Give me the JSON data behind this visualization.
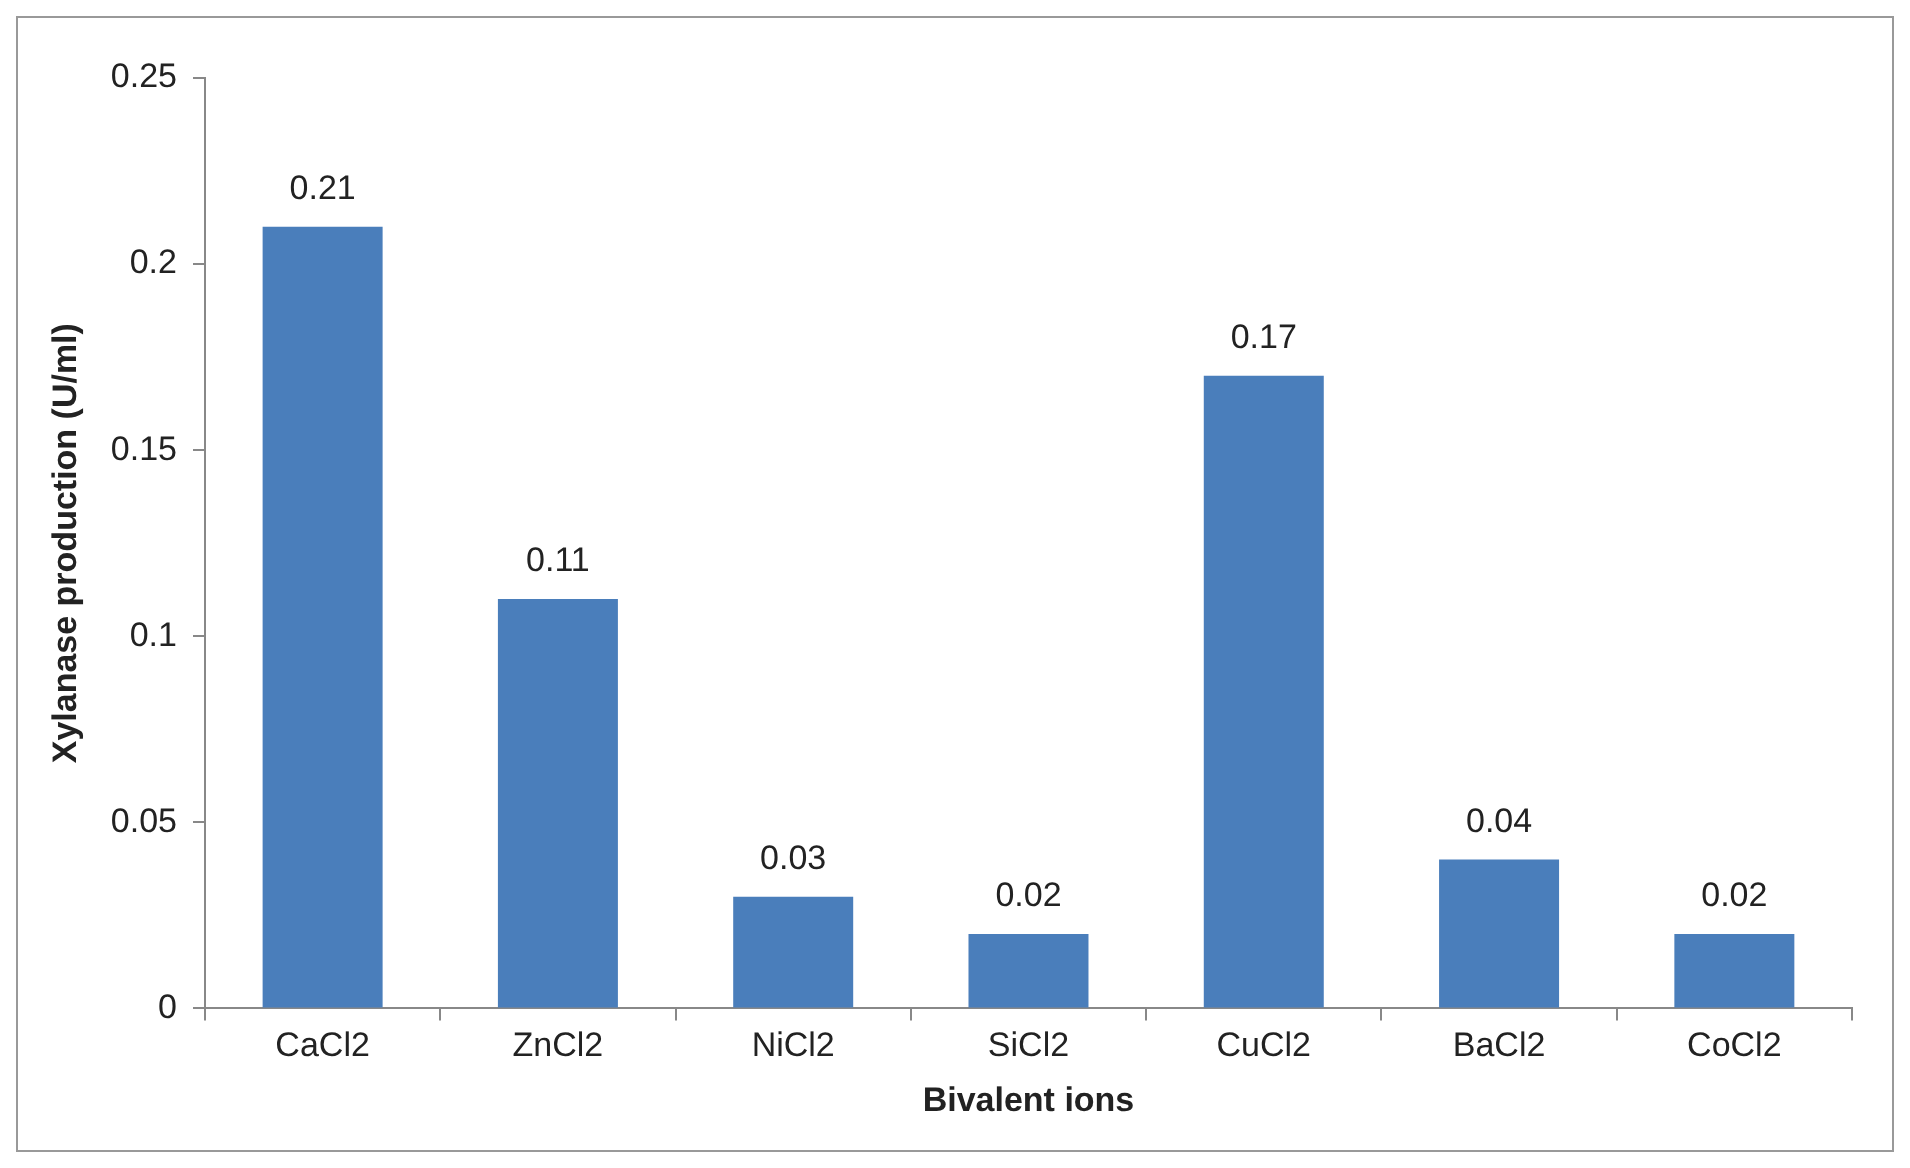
{
  "chart_data": {
    "type": "bar",
    "xlabel": "Bivalent ions",
    "ylabel": "Xylanase production (U/ml)",
    "categories": [
      "CaCl2",
      "ZnCl2",
      "NiCl2",
      "SiCl2",
      "CuCl2",
      "BaCl2",
      "CoCl2"
    ],
    "values": [
      0.21,
      0.11,
      0.03,
      0.02,
      0.17,
      0.04,
      0.02
    ],
    "color": "#4a7ebb",
    "ylim": [
      0,
      0.25
    ],
    "yticks": [
      0,
      0.05,
      0.1,
      0.15,
      0.2,
      0.25
    ],
    "grid": false,
    "legend": false,
    "data_labels": true
  }
}
